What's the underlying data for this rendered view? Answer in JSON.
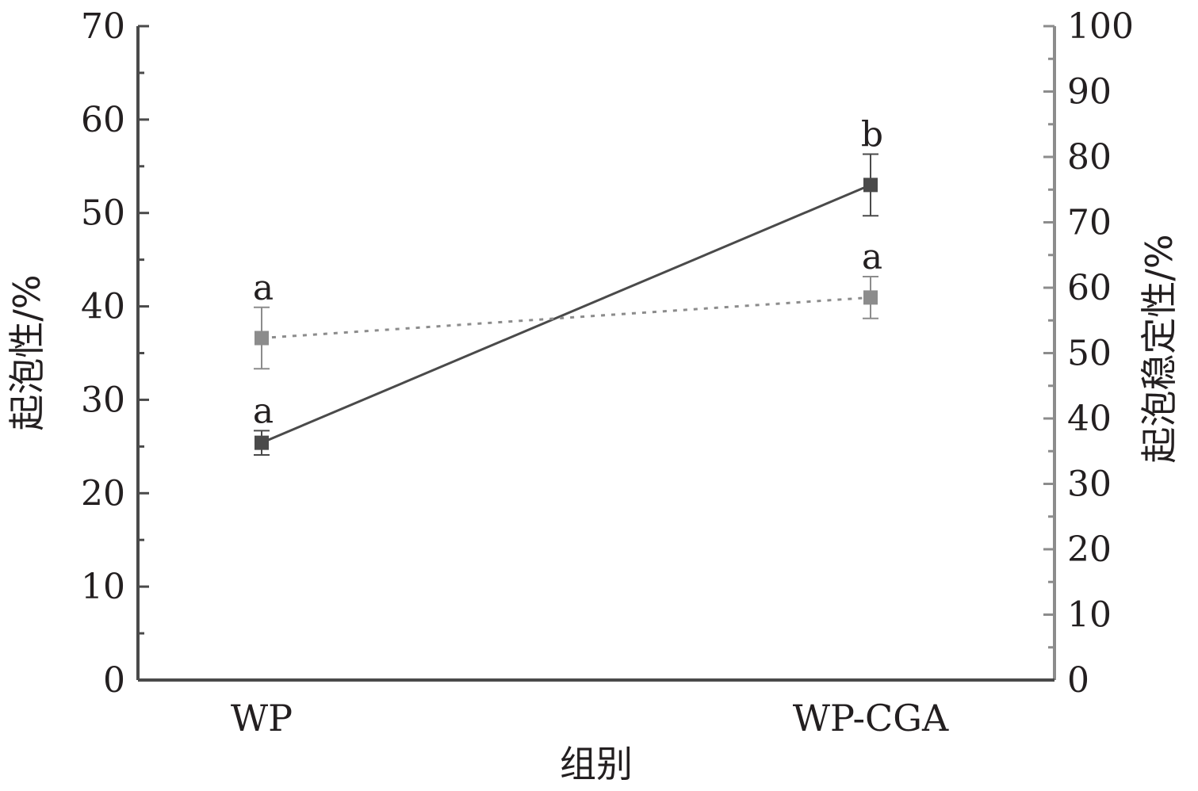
{
  "chart_data": {
    "type": "line",
    "categories": [
      "WP",
      "WP-CGA"
    ],
    "xlabel": "组别",
    "ylabel_left": "起泡性/%",
    "ylabel_right": "起泡稳定性/%",
    "ylim_left": [
      0,
      70
    ],
    "ylim_right": [
      0,
      100
    ],
    "yticks_left": [
      "0",
      "10",
      "20",
      "30",
      "40",
      "50",
      "60",
      "70"
    ],
    "yticks_right": [
      "0",
      "10",
      "20",
      "30",
      "40",
      "50",
      "60",
      "70",
      "80",
      "90",
      "100"
    ],
    "grid": false,
    "series": [
      {
        "axis": "left",
        "values": [
          25.4,
          53.0
        ],
        "errors": [
          1.3,
          3.3
        ],
        "labels": [
          "a",
          "b"
        ],
        "color": "#4a4a4a",
        "line_style": "solid"
      },
      {
        "axis": "right",
        "values": [
          52.3,
          58.5
        ],
        "errors": [
          4.7,
          3.2
        ],
        "labels": [
          "a",
          "a"
        ],
        "color": "#8c8c8c",
        "line_style": "dotted"
      }
    ]
  }
}
